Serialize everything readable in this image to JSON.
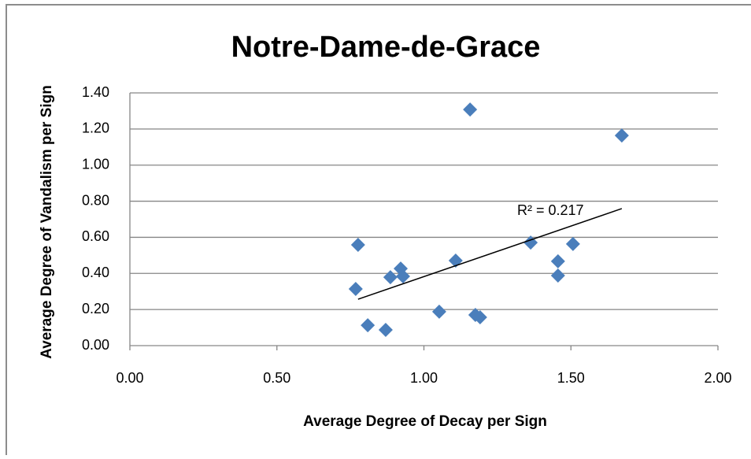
{
  "chart_data": {
    "type": "scatter",
    "title": "Notre-Dame-de-Grace",
    "x_label": "Average Degree of Decay per Sign",
    "y_label": "Average Degree of Vandalism per Sign",
    "series": [
      {
        "color": "#4a7ebb",
        "x": [
          0.776,
          0.768,
          0.809,
          0.87,
          0.886,
          0.921,
          0.929,
          1.052,
          1.108,
          1.157,
          1.175,
          1.191,
          1.363,
          1.456,
          1.456,
          1.507,
          1.673
        ],
        "values": [
          0.558,
          0.314,
          0.113,
          0.087,
          0.379,
          0.427,
          0.384,
          0.188,
          0.471,
          1.308,
          0.17,
          0.157,
          0.571,
          0.467,
          0.388,
          0.563,
          1.164
        ]
      }
    ],
    "trendline": {
      "label": "R² = 0.217",
      "color": "#000000",
      "x": [
        0.776,
        1.673
      ],
      "y": [
        0.257,
        0.759
      ]
    },
    "xlim": [
      0,
      2
    ],
    "ylim": [
      0,
      1.4
    ],
    "xticks": [
      {
        "value": 0,
        "label": "0.00"
      },
      {
        "value": 0.5,
        "label": "0.50"
      },
      {
        "value": 1,
        "label": "1.00"
      },
      {
        "value": 1.5,
        "label": "1.50"
      },
      {
        "value": 2,
        "label": "2.00"
      }
    ],
    "yticks": [
      {
        "value": 0,
        "label": "0.00"
      },
      {
        "value": 0.2,
        "label": "0.20"
      },
      {
        "value": 0.4,
        "label": "0.40"
      },
      {
        "value": 0.6,
        "label": "0.60"
      },
      {
        "value": 0.8,
        "label": "0.80"
      },
      {
        "value": 1,
        "label": "1.00"
      },
      {
        "value": 1.2,
        "label": "1.20"
      },
      {
        "value": 1.4,
        "label": "1.40"
      }
    ],
    "grid": true
  }
}
